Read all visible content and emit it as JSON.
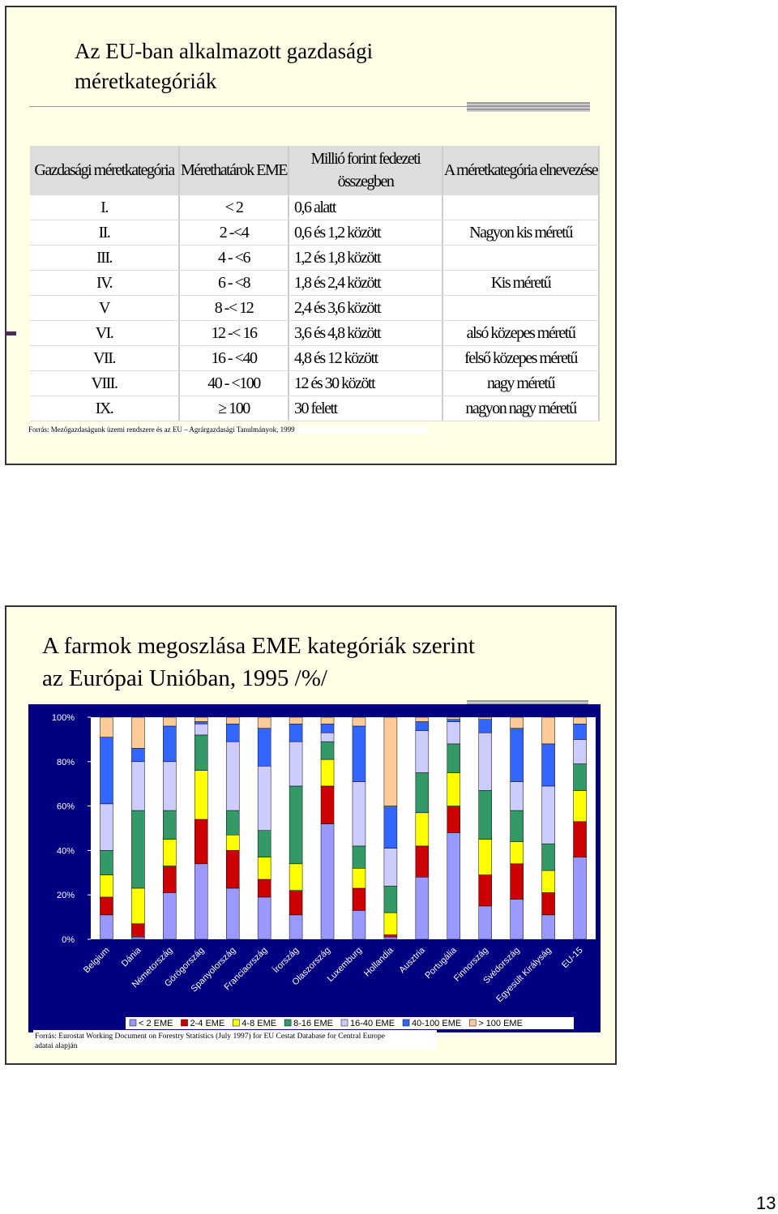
{
  "slide1": {
    "title_lines": [
      "Az EU-ban alkalmazott gazdasági",
      "méretkategóriák"
    ],
    "table": {
      "header": [
        "Gazdasági méretkategória",
        "Mérethatárok EME",
        "Millió forint fedezeti összegben",
        "A méretkategória elnevezése"
      ],
      "rows": [
        [
          "I.",
          "< 2",
          "0,6 alatt"
        ],
        [
          "II.",
          "2 -<4",
          "0,6  és  1,2 között",
          "Nagyon kis méretű"
        ],
        [
          "III.",
          "4 - <6",
          "1,2  és  1,8 között"
        ],
        [
          "IV.",
          "6 - <8",
          "1,8  és  2,4 között",
          "Kis méretű"
        ],
        [
          "V",
          "8 -< 12",
          "2,4  és  3,6 között"
        ],
        [
          "VI.",
          "12 -< 16",
          "3,6  és  4,8 között",
          "alsó közepes méretű"
        ],
        [
          "VII.",
          "16 - <40",
          "4,8  és  12 között",
          "felső közepes méretű"
        ],
        [
          "VIII.",
          "40 - <100",
          "12 és 30 között",
          "nagy méretű"
        ],
        [
          "IX.",
          "≥ 100",
          "30 felett",
          "nagyon nagy méretű"
        ]
      ]
    },
    "source": "Forrás: Mezőgazdaságunk üzemi rendszere és az EU – Agrárgazdasági Tanulmányok, 1999"
  },
  "chart_data": {
    "type": "bar",
    "stacked": true,
    "title_lines": [
      "A farmok megoszlása EME kategóriák szerint",
      "az Európai Unióban, 1995 /%/"
    ],
    "categories": [
      "Belgium",
      "Dánia",
      "Németország",
      "Görögország",
      "Spanyolország",
      "Franciaország",
      "Írország",
      "Olaszország",
      "Luxemburg",
      "Hollandia",
      "Ausztria",
      "Portugália",
      "Finnország",
      "Svédország",
      "Egyesült Királyság",
      "EU-15"
    ],
    "series": [
      {
        "name": "< 2 EME",
        "color": "#9999ff",
        "values": [
          11,
          1,
          21,
          34,
          23,
          19,
          11,
          52,
          13,
          1,
          28,
          48,
          15,
          18,
          11,
          37
        ]
      },
      {
        "name": "2-4 EME",
        "color": "#cc0000",
        "values": [
          8,
          6,
          12,
          20,
          17,
          8,
          11,
          17,
          10,
          1,
          14,
          12,
          14,
          16,
          10,
          16
        ]
      },
      {
        "name": "4-8 EME",
        "color": "#ffff00",
        "values": [
          10,
          16,
          12,
          22,
          7,
          10,
          12,
          12,
          9,
          10,
          15,
          15,
          16,
          10,
          10,
          14
        ]
      },
      {
        "name": "8-16 EME",
        "color": "#339966",
        "values": [
          11,
          35,
          13,
          16,
          11,
          12,
          35,
          8,
          10,
          12,
          18,
          13,
          22,
          14,
          12,
          12
        ]
      },
      {
        "name": "16-40 EME",
        "color": "#ccccff",
        "values": [
          21,
          22,
          22,
          5,
          31,
          29,
          20,
          4,
          29,
          17,
          19,
          10,
          26,
          13,
          26,
          11
        ]
      },
      {
        "name": "40-100 EME",
        "color": "#3366ff",
        "values": [
          30,
          6,
          16,
          1,
          8,
          17,
          8,
          4,
          25,
          19,
          4,
          1,
          6,
          24,
          19,
          7
        ]
      },
      {
        "name": "> 100 EME",
        "color": "#ffcc99",
        "values": [
          9,
          14,
          4,
          2,
          3,
          5,
          3,
          3,
          4,
          40,
          2,
          1,
          1,
          5,
          12,
          3
        ]
      }
    ],
    "ylim": [
      0,
      100
    ],
    "yticks": [
      {
        "value": 0,
        "label": "0%"
      },
      {
        "value": 20,
        "label": "20%"
      },
      {
        "value": 40,
        "label": "40%"
      },
      {
        "value": 60,
        "label": "60%"
      },
      {
        "value": 80,
        "label": "80%"
      },
      {
        "value": 100,
        "label": "100%"
      }
    ],
    "legend": "bottom",
    "source": "Forrás: Eurostat Working Document on Forestry Statistics (July 1997) for EU Cestat Database for Central Europe adatai alapján"
  },
  "page_number": "13"
}
